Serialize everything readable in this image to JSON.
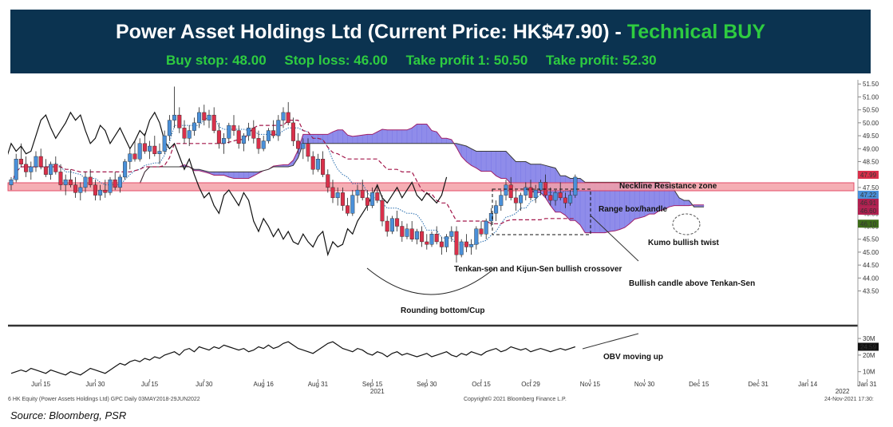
{
  "header": {
    "title": "Power Asset Holdings Ltd (Current Price: HK$47.90) - ",
    "rating": "Technical BUY",
    "buy_stop": "Buy stop: 48.00",
    "stop_loss": "Stop loss: 46.00",
    "take_profit_1": "Take profit 1: 50.50",
    "take_profit_2": "Take profit: 52.30"
  },
  "source": "Source: Bloomberg, PSR",
  "footer": {
    "left": "6 HK Equity (Power Assets Holdings Ltd) GPC  Daily 03MAY2018-29JUN2022",
    "center": "Copyright© 2021 Bloomberg Finance L.P.",
    "right": "24-Nov-2021 17:30:"
  },
  "colors": {
    "banner_bg": "#0b3350",
    "banner_text": "#ffffff",
    "buy_green": "#2ecc40",
    "cloud": "#7b78e6",
    "up_candle": "#4a90d9",
    "down_candle": "#d9304a",
    "resistance": "#f4a0a8"
  },
  "annotations": {
    "neckline": "Neckline Resistance zone",
    "range_box": "Range box/handle",
    "kumo": "Kumo bullish twist",
    "crossover": "Tenkan-sen and Kijun-Sen bullish crossover",
    "bullish_candle": "Bullish candle above Tenkan-Sen",
    "rounding": "Rounding bottom/Cup",
    "obv": "OBV moving up"
  },
  "chart_data": {
    "type": "candlestick",
    "title": "Power Asset Holdings Ltd (Current Price: HK$47.90) - Technical BUY",
    "price_axis": {
      "ticks": [
        "51.50",
        "51.00",
        "50.50",
        "50.00",
        "49.50",
        "49.00",
        "48.50",
        "48.00",
        "47.50",
        "47.00",
        "46.50",
        "46.00",
        "45.50",
        "45.00",
        "44.50",
        "44.00",
        "43.50"
      ],
      "ylim": [
        43.3,
        51.6
      ]
    },
    "obv_axis": {
      "ticks": [
        "30M",
        "20M",
        "10M"
      ],
      "ylim": [
        6,
        31
      ]
    },
    "x_ticks": [
      {
        "label": "Jun 15",
        "idx": 6
      },
      {
        "label": "Jun 30",
        "idx": 17
      },
      {
        "label": "Jul 15",
        "idx": 28
      },
      {
        "label": "Jul 30",
        "idx": 39
      },
      {
        "label": "Aug 16",
        "idx": 51
      },
      {
        "label": "Aug 31",
        "idx": 62
      },
      {
        "label": "Sep 15",
        "idx": 73
      },
      {
        "label": "Sep 30",
        "idx": 84
      },
      {
        "label": "Oct 15",
        "idx": 95
      },
      {
        "label": "Oct 29",
        "idx": 105
      },
      {
        "label": "Nov 15",
        "idx": 117
      },
      {
        "label": "Nov 30",
        "idx": 128
      },
      {
        "label": "Dec 15",
        "idx": 139
      },
      {
        "label": "Dec 31",
        "idx": 151
      },
      {
        "label": "Jan 14",
        "idx": 161
      },
      {
        "label": "Jan 31",
        "idx": 173
      }
    ],
    "year_labels": [
      {
        "label": "2021",
        "idx": 74
      },
      {
        "label": "2022",
        "idx": 168
      }
    ],
    "last_values": [
      {
        "value": "47.99",
        "color": "#d9304a"
      },
      {
        "value": "47.22",
        "color": "#4a90d9"
      },
      {
        "value": "46.91",
        "color": "#b02050"
      },
      {
        "value": "46.60",
        "color": "#b02050"
      },
      {
        "value": "46.10",
        "color": "#3d6b1a"
      }
    ],
    "obv_last": "24.59",
    "series": [
      {
        "name": "Price",
        "values": [
          [
            47.6,
            47.9,
            47.4,
            47.8
          ],
          [
            47.8,
            48.8,
            47.7,
            48.6
          ],
          [
            48.6,
            49.2,
            48.3,
            48.4
          ],
          [
            48.4,
            48.7,
            47.9,
            48.1
          ],
          [
            48.1,
            48.5,
            47.8,
            48.3
          ],
          [
            48.3,
            48.9,
            48.1,
            48.7
          ],
          [
            48.7,
            49.0,
            48.2,
            48.3
          ],
          [
            48.3,
            48.6,
            47.9,
            48.0
          ],
          [
            48.0,
            48.5,
            47.8,
            48.4
          ],
          [
            48.4,
            48.7,
            48.0,
            48.1
          ],
          [
            48.1,
            48.4,
            47.4,
            47.6
          ],
          [
            47.6,
            48.0,
            47.2,
            47.8
          ],
          [
            47.8,
            48.2,
            47.5,
            47.6
          ],
          [
            47.6,
            47.9,
            47.1,
            47.3
          ],
          [
            47.3,
            47.7,
            47.0,
            47.5
          ],
          [
            47.5,
            48.1,
            47.3,
            47.9
          ],
          [
            47.9,
            48.2,
            47.5,
            47.6
          ],
          [
            47.6,
            47.8,
            47.0,
            47.2
          ],
          [
            47.2,
            47.6,
            47.0,
            47.4
          ],
          [
            47.4,
            47.8,
            47.1,
            47.3
          ],
          [
            47.3,
            47.9,
            47.2,
            47.8
          ],
          [
            47.8,
            48.1,
            47.4,
            47.5
          ],
          [
            47.5,
            48.0,
            47.3,
            47.9
          ],
          [
            47.9,
            48.6,
            47.8,
            48.5
          ],
          [
            48.5,
            49.0,
            48.2,
            48.8
          ],
          [
            48.8,
            49.3,
            48.5,
            48.6
          ],
          [
            48.6,
            49.4,
            48.5,
            49.2
          ],
          [
            49.2,
            49.6,
            48.8,
            48.9
          ],
          [
            48.9,
            49.3,
            48.6,
            49.1
          ],
          [
            49.1,
            49.5,
            48.7,
            48.8
          ],
          [
            48.8,
            49.2,
            48.4,
            48.9
          ],
          [
            48.9,
            49.7,
            48.8,
            49.5
          ],
          [
            49.5,
            50.3,
            49.3,
            50.1
          ],
          [
            50.1,
            51.4,
            49.8,
            50.3
          ],
          [
            50.3,
            50.6,
            49.6,
            49.8
          ],
          [
            49.8,
            50.1,
            49.2,
            49.4
          ],
          [
            49.4,
            49.9,
            49.1,
            49.7
          ],
          [
            49.7,
            50.2,
            49.5,
            50.0
          ],
          [
            50.0,
            50.6,
            49.8,
            50.4
          ],
          [
            50.4,
            50.7,
            49.9,
            50.1
          ],
          [
            50.1,
            50.5,
            49.8,
            50.3
          ],
          [
            50.3,
            50.6,
            49.6,
            49.7
          ],
          [
            49.7,
            50.0,
            49.0,
            49.2
          ],
          [
            49.2,
            49.6,
            48.8,
            49.4
          ],
          [
            49.4,
            50.0,
            49.2,
            49.9
          ],
          [
            49.9,
            50.3,
            49.5,
            49.7
          ],
          [
            49.7,
            49.9,
            49.0,
            49.2
          ],
          [
            49.2,
            49.6,
            48.9,
            49.5
          ],
          [
            49.5,
            50.0,
            49.3,
            49.8
          ],
          [
            49.8,
            50.1,
            49.2,
            49.4
          ],
          [
            49.4,
            49.7,
            48.8,
            49.0
          ],
          [
            49.0,
            49.5,
            48.9,
            49.3
          ],
          [
            49.3,
            49.8,
            49.2,
            49.7
          ],
          [
            49.7,
            50.1,
            49.4,
            49.5
          ],
          [
            49.5,
            50.3,
            49.3,
            50.1
          ],
          [
            50.1,
            50.6,
            49.8,
            50.4
          ],
          [
            50.4,
            50.8,
            49.9,
            50.0
          ],
          [
            50.0,
            50.2,
            49.1,
            49.3
          ],
          [
            49.3,
            49.6,
            48.8,
            49.0
          ],
          [
            49.0,
            49.4,
            48.6,
            49.2
          ],
          [
            49.2,
            49.4,
            48.5,
            48.7
          ],
          [
            48.7,
            48.9,
            48.0,
            48.2
          ],
          [
            48.2,
            48.8,
            48.1,
            48.6
          ],
          [
            48.6,
            48.9,
            47.9,
            48.0
          ],
          [
            48.0,
            48.2,
            47.3,
            47.5
          ],
          [
            47.5,
            47.8,
            46.9,
            47.1
          ],
          [
            47.1,
            47.5,
            46.8,
            47.3
          ],
          [
            47.3,
            47.5,
            46.6,
            46.8
          ],
          [
            46.8,
            47.1,
            46.4,
            46.5
          ],
          [
            46.5,
            47.4,
            46.4,
            47.2
          ],
          [
            47.2,
            47.6,
            46.9,
            47.4
          ],
          [
            47.4,
            47.8,
            47.0,
            47.1
          ],
          [
            47.1,
            47.4,
            46.6,
            46.8
          ],
          [
            46.8,
            47.5,
            46.7,
            47.3
          ],
          [
            47.3,
            47.6,
            46.9,
            47.0
          ],
          [
            47.0,
            47.2,
            46.0,
            46.2
          ],
          [
            46.2,
            46.4,
            45.6,
            45.8
          ],
          [
            45.8,
            46.4,
            45.7,
            46.3
          ],
          [
            46.3,
            46.6,
            45.8,
            46.0
          ],
          [
            46.0,
            46.2,
            45.4,
            45.6
          ],
          [
            45.6,
            46.1,
            45.5,
            45.9
          ],
          [
            45.9,
            46.2,
            45.4,
            45.5
          ],
          [
            45.5,
            45.9,
            45.3,
            45.8
          ],
          [
            45.8,
            46.0,
            45.2,
            45.4
          ],
          [
            45.4,
            45.7,
            45.1,
            45.3
          ],
          [
            45.3,
            45.8,
            45.2,
            45.7
          ],
          [
            45.7,
            46.0,
            45.3,
            45.4
          ],
          [
            45.4,
            45.6,
            44.9,
            45.2
          ],
          [
            45.2,
            45.7,
            45.0,
            45.6
          ],
          [
            45.6,
            46.0,
            45.4,
            45.8
          ],
          [
            45.8,
            46.0,
            44.6,
            44.9
          ],
          [
            44.9,
            45.5,
            44.8,
            45.4
          ],
          [
            45.4,
            45.7,
            45.0,
            45.2
          ],
          [
            45.2,
            45.5,
            44.9,
            45.3
          ],
          [
            45.3,
            46.0,
            45.1,
            45.9
          ],
          [
            45.9,
            46.2,
            45.6,
            45.7
          ],
          [
            45.7,
            46.3,
            45.5,
            46.2
          ],
          [
            46.2,
            46.7,
            46.0,
            46.5
          ],
          [
            46.5,
            47.0,
            46.2,
            46.8
          ],
          [
            46.8,
            47.4,
            46.6,
            47.2
          ],
          [
            47.2,
            47.8,
            47.0,
            47.6
          ],
          [
            47.6,
            47.9,
            47.0,
            47.1
          ],
          [
            47.1,
            47.4,
            46.6,
            46.9
          ],
          [
            46.9,
            47.3,
            46.6,
            47.2
          ],
          [
            47.2,
            47.7,
            47.0,
            47.5
          ],
          [
            47.5,
            47.8,
            47.0,
            47.1
          ],
          [
            47.1,
            47.6,
            46.9,
            47.4
          ],
          [
            47.4,
            47.8,
            47.2,
            47.7
          ],
          [
            47.7,
            48.0,
            47.1,
            47.2
          ],
          [
            47.2,
            47.5,
            46.8,
            47.0
          ],
          [
            47.0,
            47.4,
            46.8,
            47.3
          ],
          [
            47.3,
            47.7,
            47.0,
            47.1
          ],
          [
            47.1,
            47.3,
            46.7,
            46.9
          ],
          [
            46.9,
            47.4,
            46.8,
            47.2
          ],
          [
            47.2,
            48.0,
            47.1,
            47.9
          ]
        ]
      },
      {
        "name": "OBV",
        "values": [
          9,
          10,
          11,
          10,
          12,
          11,
          10,
          9,
          11,
          10,
          9,
          8,
          10,
          9,
          8,
          10,
          12,
          11,
          10,
          9,
          11,
          13,
          15,
          14,
          16,
          17,
          16,
          18,
          17,
          19,
          18,
          20,
          21,
          22,
          20,
          23,
          24,
          22,
          25,
          24,
          23,
          25,
          24,
          26,
          25,
          24,
          23,
          24,
          22,
          23,
          25,
          24,
          26,
          24,
          25,
          27,
          28,
          26,
          24,
          23,
          22,
          21,
          23,
          25,
          27,
          28,
          26,
          24,
          23,
          22,
          24,
          23,
          21,
          20,
          22,
          21,
          19,
          21,
          22,
          20,
          21,
          20,
          19,
          20,
          21,
          19,
          20,
          21,
          22,
          20,
          19,
          21,
          20,
          22,
          21,
          20,
          22,
          23,
          24,
          22,
          23,
          25,
          24,
          23,
          24,
          22,
          23,
          24,
          23,
          22,
          23,
          24,
          23,
          24,
          25
        ]
      }
    ]
  }
}
